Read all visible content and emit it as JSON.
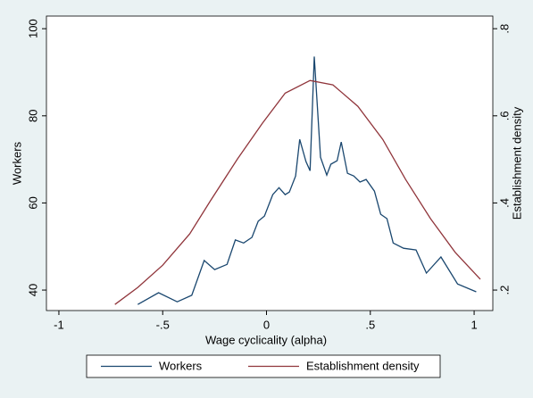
{
  "chart_data": {
    "type": "line",
    "xlabel": "Wage cyclicality (alpha)",
    "ylabel": "Workers",
    "y2label": "Establishment density",
    "xlim": [
      -1.06,
      1.09
    ],
    "xticks": [
      -1,
      {
        "value": -0.5,
        "label": "-.5"
      },
      0,
      {
        "value": 0.5,
        "label": ".5"
      },
      1
    ],
    "ylim": [
      35.3,
      102.9
    ],
    "yticks": [
      40,
      60,
      80,
      100
    ],
    "y2lim": [
      0.153,
      0.829
    ],
    "y2ticks": [
      {
        "value": 0.2,
        "label": ".2"
      },
      {
        "value": 0.4,
        "label": ".4"
      },
      {
        "value": 0.6,
        "label": ".6"
      },
      {
        "value": 0.8,
        "label": ".8"
      }
    ],
    "legend": "bottom",
    "series": [
      {
        "name": "Workers",
        "color": "#1a476f",
        "x": [
          -0.62,
          -0.52,
          -0.43,
          -0.36,
          -0.3,
          -0.25,
          -0.19,
          -0.15,
          -0.11,
          -0.07,
          -0.04,
          -0.01,
          0.03,
          0.06,
          0.09,
          0.11,
          0.14,
          0.16,
          0.19,
          0.21,
          0.23,
          0.26,
          0.29,
          0.31,
          0.34,
          0.36,
          0.39,
          0.42,
          0.45,
          0.48,
          0.52,
          0.55,
          0.58,
          0.61,
          0.66,
          0.72,
          0.77,
          0.84,
          0.92,
          1.01
        ],
        "values": [
          36.7,
          39.4,
          37.3,
          38.8,
          46.8,
          44.7,
          45.9,
          51.5,
          50.8,
          52.1,
          55.8,
          57.0,
          61.9,
          63.5,
          61.9,
          62.5,
          66.2,
          74.6,
          69.5,
          67.4,
          93.6,
          70.5,
          66.4,
          68.9,
          69.7,
          74.0,
          66.8,
          66.2,
          64.8,
          65.4,
          62.7,
          57.4,
          56.4,
          50.8,
          49.6,
          49.2,
          43.9,
          47.6,
          41.4,
          39.6
        ]
      },
      {
        "name": "Establishment density",
        "color": "#90353b",
        "axis": "y2",
        "x": [
          -0.73,
          -0.62,
          -0.5,
          -0.37,
          -0.27,
          -0.14,
          -0.02,
          0.09,
          0.21,
          0.32,
          0.44,
          0.56,
          0.67,
          0.79,
          0.91,
          1.03
        ],
        "values": [
          0.167,
          0.206,
          0.257,
          0.329,
          0.405,
          0.501,
          0.583,
          0.652,
          0.681,
          0.671,
          0.622,
          0.546,
          0.454,
          0.364,
          0.286,
          0.225
        ]
      }
    ]
  }
}
